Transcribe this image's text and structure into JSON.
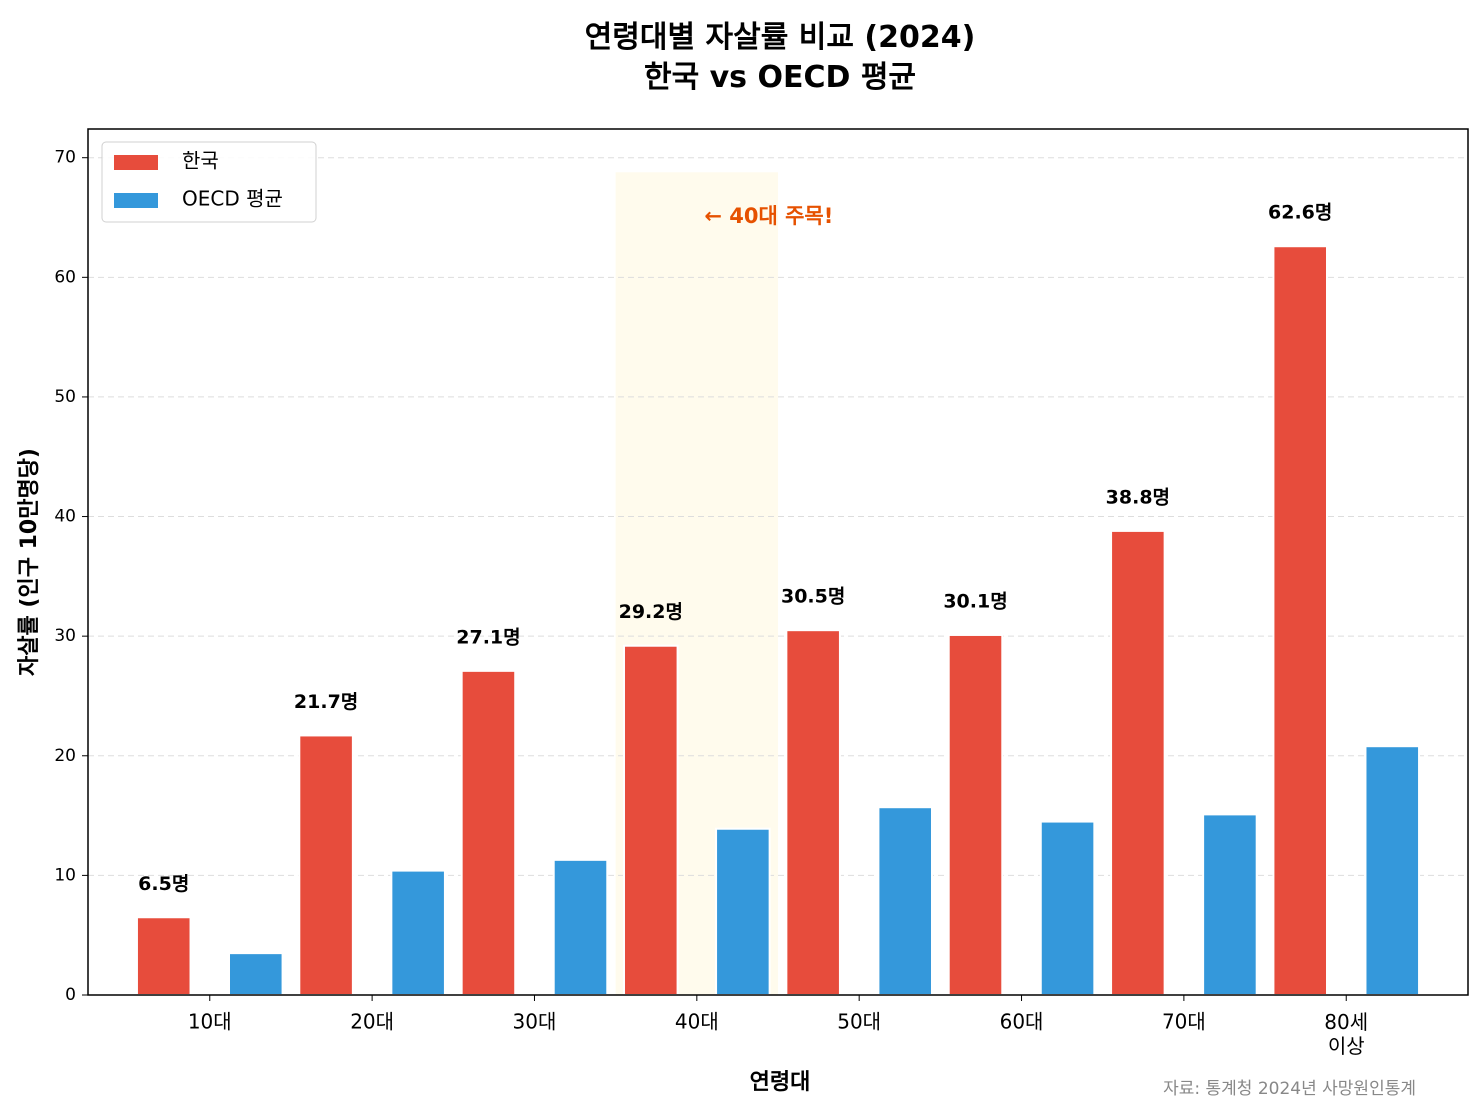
{
  "chart_data": {
    "type": "bar",
    "title": "연령대별 자살률 비교 (2024)\n한국 vs OECD 평균",
    "x_label": "연령대",
    "y_label": "자살률 (인구 10만명당)",
    "categories": [
      "10대",
      "20대",
      "30대",
      "40대",
      "50대",
      "60대",
      "70대",
      "80세\n이상"
    ],
    "series": [
      {
        "name": "한국",
        "color": "#e74c3c",
        "values": [
          6.5,
          21.7,
          27.1,
          29.2,
          30.5,
          30.1,
          38.8,
          62.6
        ],
        "value_labels": [
          "6.5명",
          "21.7명",
          "27.1명",
          "29.2명",
          "30.5명",
          "30.1명",
          "38.8명",
          "62.6명"
        ]
      },
      {
        "name": "OECD 평균",
        "color": "#3498db",
        "values": [
          3.5,
          10.4,
          11.3,
          13.9,
          15.7,
          14.5,
          15.1,
          20.8
        ]
      }
    ],
    "ylim": [
      0,
      72.4
    ],
    "yticks": [
      0,
      10,
      20,
      30,
      40,
      50,
      60,
      70
    ],
    "grid": true,
    "legend": "upper left",
    "highlight": "40대",
    "annotation": "← 40대 주목!",
    "source": "자료: 통계청 2024년 사망원인통계"
  }
}
